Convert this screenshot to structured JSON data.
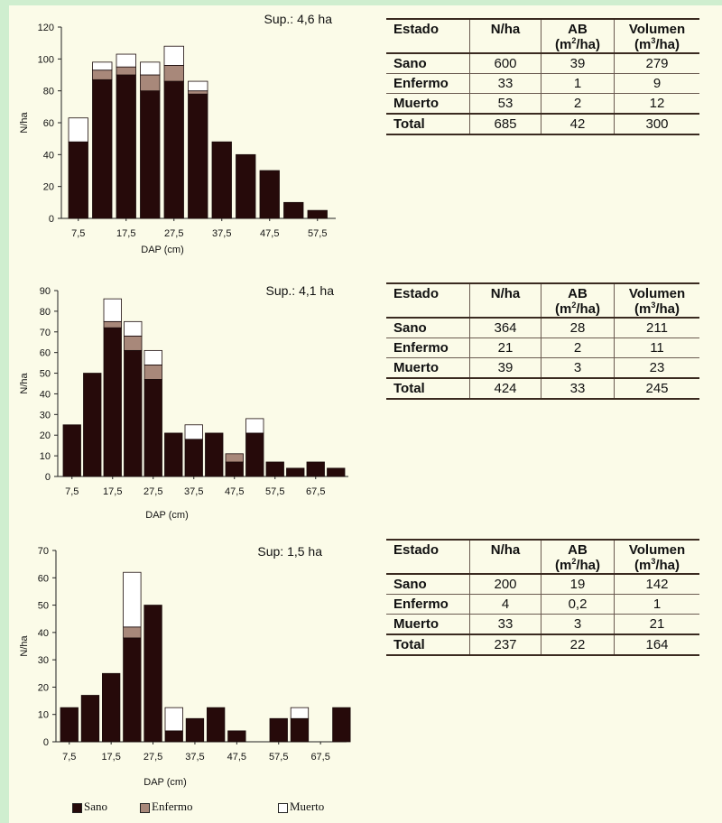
{
  "colors": {
    "sano": "#260a0a",
    "enfermo": "#a8887a",
    "muerto": "#ffffff"
  },
  "legend": {
    "sano": "Sano",
    "enfermo": "Enfermo",
    "muerto": "Muerto"
  },
  "table_headers": {
    "estado": "Estado",
    "nha": "N/ha",
    "ab": "AB",
    "ab_unit_pre": "(m",
    "ab_unit_sup": "2",
    "ab_unit_post": "/ha)",
    "vol": "Volumen",
    "vol_unit_pre": "(m",
    "vol_unit_sup": "3",
    "vol_unit_post": "/ha)"
  },
  "sites": [
    {
      "sup_label": "Sup.: 4,6 ha",
      "table": [
        {
          "estado": "Sano",
          "nha": "600",
          "ab": "39",
          "vol": "279"
        },
        {
          "estado": "Enfermo",
          "nha": "33",
          "ab": "1",
          "vol": "9"
        },
        {
          "estado": "Muerto",
          "nha": "53",
          "ab": "2",
          "vol": "12"
        },
        {
          "estado": "Total",
          "nha": "685",
          "ab": "42",
          "vol": "300"
        }
      ]
    },
    {
      "sup_label": "Sup.: 4,1 ha",
      "table": [
        {
          "estado": "Sano",
          "nha": "364",
          "ab": "28",
          "vol": "211"
        },
        {
          "estado": "Enfermo",
          "nha": "21",
          "ab": "2",
          "vol": "11"
        },
        {
          "estado": "Muerto",
          "nha": "39",
          "ab": "3",
          "vol": "23"
        },
        {
          "estado": "Total",
          "nha": "424",
          "ab": "33",
          "vol": "245"
        }
      ]
    },
    {
      "sup_label": "Sup: 1,5 ha",
      "table": [
        {
          "estado": "Sano",
          "nha": "200",
          "ab": "19",
          "vol": "142"
        },
        {
          "estado": "Enfermo",
          "nha": "4",
          "ab": "0,2",
          "vol": "1"
        },
        {
          "estado": "Muerto",
          "nha": "33",
          "ab": "3",
          "vol": "21"
        },
        {
          "estado": "Total",
          "nha": "237",
          "ab": "22",
          "vol": "164"
        }
      ]
    }
  ],
  "chart_data": [
    {
      "type": "bar",
      "stacked": true,
      "xlabel": "DAP (cm)",
      "ylabel": "N/ha",
      "ylim": [
        0,
        120
      ],
      "yticks": [
        0,
        20,
        40,
        60,
        80,
        100,
        120
      ],
      "xtick_labels": [
        "7,5",
        "17,5",
        "27,5",
        "37,5",
        "47,5",
        "57,5"
      ],
      "categories": [
        "7,5",
        "12,5",
        "17,5",
        "22,5",
        "27,5",
        "32,5",
        "37,5",
        "42,5",
        "47,5",
        "52,5",
        "57,5"
      ],
      "series": [
        {
          "name": "Sano",
          "values": [
            48,
            87,
            90,
            80,
            86,
            78,
            48,
            40,
            30,
            10,
            5
          ]
        },
        {
          "name": "Enfermo",
          "values": [
            0,
            6,
            5,
            10,
            10,
            2,
            0,
            0,
            0,
            0,
            0
          ]
        },
        {
          "name": "Muerto",
          "values": [
            15,
            5,
            8,
            8,
            12,
            6,
            0,
            0,
            0,
            0,
            0
          ]
        }
      ]
    },
    {
      "type": "bar",
      "stacked": true,
      "xlabel": "DAP (cm)",
      "ylabel": "N/ha",
      "ylim": [
        0,
        90
      ],
      "yticks": [
        0,
        10,
        20,
        30,
        40,
        50,
        60,
        70,
        80,
        90
      ],
      "xtick_labels": [
        "7,5",
        "17,5",
        "27,5",
        "37,5",
        "47,5",
        "57,5",
        "67,5"
      ],
      "categories": [
        "7,5",
        "12,5",
        "17,5",
        "22,5",
        "27,5",
        "32,5",
        "37,5",
        "42,5",
        "47,5",
        "52,5",
        "57,5",
        "62,5",
        "67,5",
        "72,5"
      ],
      "series": [
        {
          "name": "Sano",
          "values": [
            25,
            50,
            72,
            61,
            47,
            21,
            18,
            21,
            7,
            21,
            7,
            4,
            7,
            4
          ]
        },
        {
          "name": "Enfermo",
          "values": [
            0,
            0,
            3,
            7,
            7,
            0,
            0,
            0,
            4,
            0,
            0,
            0,
            0,
            0
          ]
        },
        {
          "name": "Muerto",
          "values": [
            0,
            0,
            11,
            7,
            7,
            0,
            7,
            0,
            0,
            7,
            0,
            0,
            0,
            0
          ]
        }
      ]
    },
    {
      "type": "bar",
      "stacked": true,
      "xlabel": "DAP (cm)",
      "ylabel": "N/ha",
      "ylim": [
        0,
        70
      ],
      "yticks": [
        0,
        10,
        20,
        30,
        40,
        50,
        60,
        70
      ],
      "xtick_labels": [
        "7,5",
        "17,5",
        "27,5",
        "37,5",
        "47,5",
        "57,5",
        "67,5"
      ],
      "categories": [
        "7,5",
        "12,5",
        "17,5",
        "22,5",
        "27,5",
        "32,5",
        "37,5",
        "42,5",
        "47,5",
        "52,5",
        "57,5",
        "62,5",
        "67,5",
        "72,5"
      ],
      "series": [
        {
          "name": "Sano",
          "values": [
            12.5,
            17,
            25,
            38,
            50,
            4,
            8.5,
            12.5,
            4,
            0,
            8.5,
            8.5,
            0,
            12.5
          ]
        },
        {
          "name": "Enfermo",
          "values": [
            0,
            0,
            0,
            4,
            0,
            0,
            0,
            0,
            0,
            0,
            0,
            0,
            0,
            0
          ]
        },
        {
          "name": "Muerto",
          "values": [
            0,
            0,
            0,
            20,
            0,
            8.5,
            0,
            0,
            0,
            0,
            0,
            4,
            0,
            0
          ]
        }
      ]
    }
  ]
}
